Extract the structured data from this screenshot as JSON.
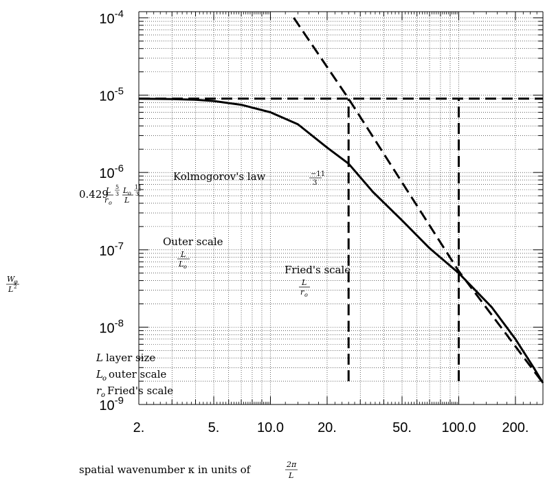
{
  "chart_data": {
    "type": "line",
    "title": "",
    "xlabel": "spatial wavenumber κ in units of 2π/L",
    "ylabel": "Wφ/L²",
    "x_scale": "log",
    "y_scale": "log",
    "xlim": [
      2,
      280
    ],
    "ylim": [
      1e-09,
      0.00012
    ],
    "grid": true,
    "x_tick_labels": [
      "2.",
      "5.",
      "10.0",
      "20.",
      "50.",
      "100.0",
      "200."
    ],
    "x_ticks": [
      2,
      5,
      10,
      20,
      50,
      100,
      200
    ],
    "y_tick_labels": [
      {
        "base": "10",
        "exp": "-4"
      },
      {
        "base": "10",
        "exp": "-5"
      },
      {
        "base": "10",
        "exp": "-6"
      },
      {
        "base": "10",
        "exp": "-7"
      },
      {
        "base": "10",
        "exp": "-8"
      },
      {
        "base": "10",
        "exp": "-9"
      }
    ],
    "y_ticks": [
      0.0001,
      1e-05,
      1e-06,
      1e-07,
      1e-08,
      1e-09
    ],
    "series": [
      {
        "style": "solid",
        "x": [
          2,
          3,
          4,
          5,
          7,
          10,
          14,
          20,
          26,
          35,
          50,
          70,
          100,
          150,
          200,
          250,
          280
        ],
        "y": [
          9e-06,
          8.9e-06,
          8.7e-06,
          8.4e-06,
          7.5e-06,
          6e-06,
          4.2e-06,
          2.1e-06,
          1.3e-06,
          5.6e-07,
          2.4e-07,
          1.05e-07,
          5e-08,
          1.8e-08,
          7e-09,
          3e-09,
          1.9e-09
        ]
      },
      {
        "style": "dashed",
        "x": [
          13.3,
          26,
          100,
          280
        ],
        "y": [
          0.0001,
          9e-06,
          5.3e-08,
          1.9e-09
        ]
      }
    ],
    "reference_lines": [
      {
        "kind": "horizontal",
        "y": 9e-06,
        "x_from": 2,
        "x_to": 280
      },
      {
        "kind": "vertical",
        "x": 26,
        "y_from": 2e-09,
        "y_to": 9e-06
      },
      {
        "kind": "vertical",
        "x": 100,
        "y_from": 2e-09,
        "y_to": 9e-06
      }
    ],
    "annotations": {
      "kolmogorov": "Kolmogorov's law",
      "kolmogorov_exp_num": "−11",
      "kolmogorov_exp_den": "3",
      "level_coef": "0.429",
      "level_L": "L",
      "level_ro": "r",
      "level_ro_sub": "o",
      "level_exp1_num": "5",
      "level_exp1_den": "3",
      "level_Lo": "L",
      "level_Lo_sub": "o",
      "level_L2": "L",
      "level_exp2_num": "11",
      "level_exp2_den": "3",
      "outer_scale": "Outer scale",
      "outer_num": "L",
      "outer_den": "L",
      "outer_den_sub": "o",
      "fried_scale": "Fried's scale",
      "fried_num": "L",
      "fried_den": "r",
      "fried_den_sub": "o",
      "legend": [
        {
          "sym": "L",
          "sub": "",
          "text": "layer size"
        },
        {
          "sym": "L",
          "sub": "o",
          "text": "outer scale"
        },
        {
          "sym": "r",
          "sub": "o",
          "text": "Fried's scale"
        }
      ],
      "ylabel_num": "W",
      "ylabel_num_sub": "φ",
      "ylabel_den": "L",
      "ylabel_den_sup": "2",
      "xlabel_text": "spatial wavenumber κ in units of",
      "xlabel_frac_num": "2π",
      "xlabel_frac_den": "L"
    }
  }
}
